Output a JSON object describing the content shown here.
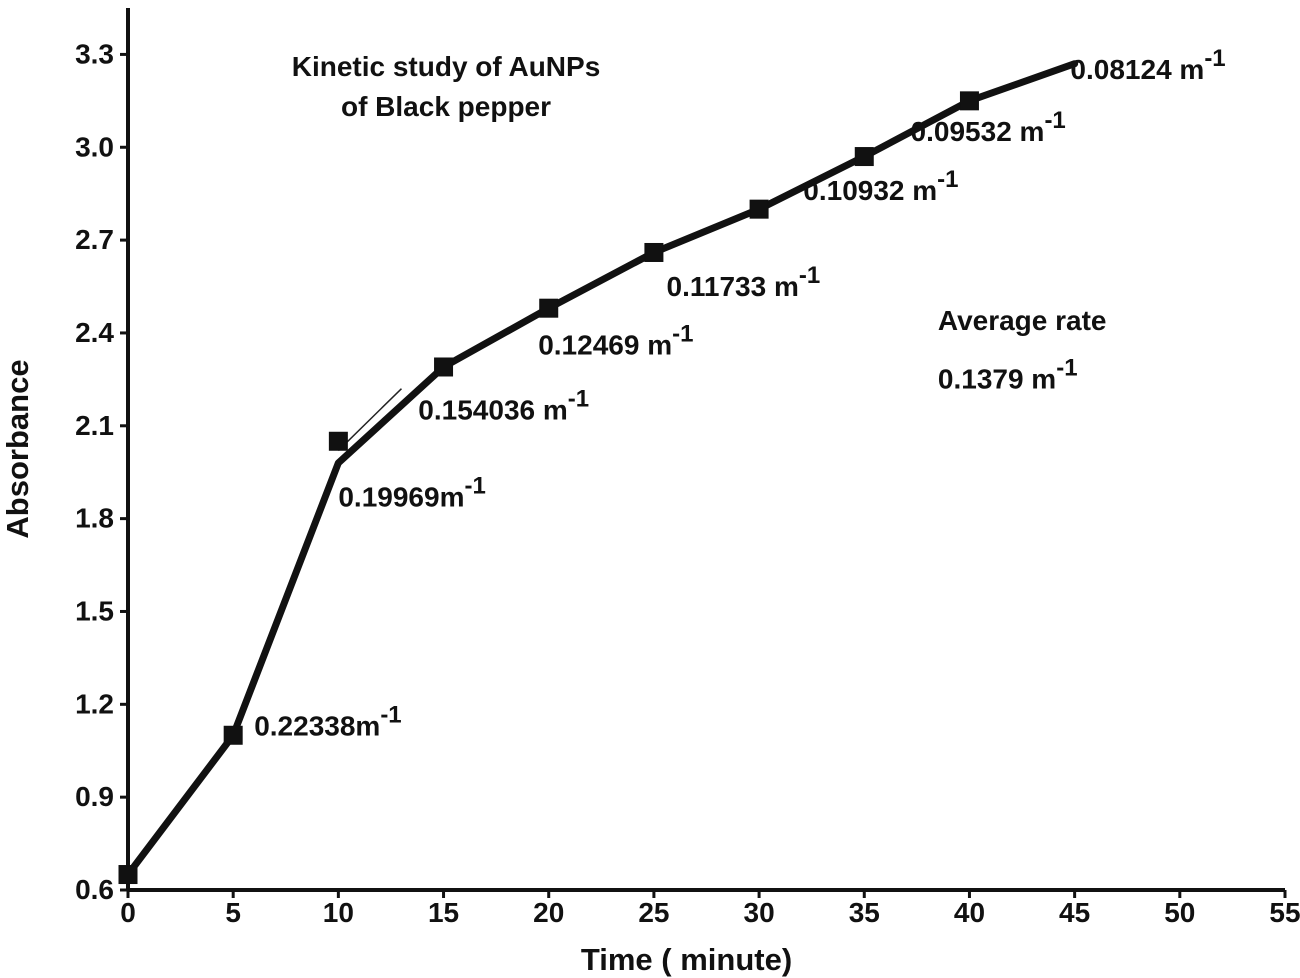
{
  "chart_data": {
    "type": "line",
    "title_lines": [
      "Kinetic study of AuNPs",
      "of Black pepper"
    ],
    "xlabel": "Time ( minute)",
    "ylabel": "Absorbance",
    "xlim": [
      0,
      55
    ],
    "ylim": [
      0.6,
      3.45
    ],
    "x_ticks": [
      0,
      5,
      10,
      15,
      20,
      25,
      30,
      35,
      40,
      45,
      50,
      55
    ],
    "y_ticks": [
      0.6,
      0.9,
      1.2,
      1.5,
      1.8,
      2.1,
      2.4,
      2.7,
      3.0,
      3.3
    ],
    "x_tick_labels": [
      "0",
      "5",
      "10",
      "15",
      "20",
      "25",
      "30",
      "35",
      "40",
      "45",
      "50",
      "55"
    ],
    "y_tick_labels": [
      "0.6",
      "0.9",
      "1.2",
      "1.5",
      "1.8",
      "2.1",
      "2.4",
      "2.7",
      "3.0",
      "3.3"
    ],
    "grid": false,
    "series": [
      {
        "x": [
          0,
          5,
          10,
          15,
          20,
          25,
          30,
          35,
          40,
          45
        ],
        "y": [
          0.65,
          1.1,
          1.98,
          2.29,
          2.48,
          2.66,
          2.8,
          2.97,
          3.15,
          3.27
        ],
        "markers_x": [
          0,
          5,
          10,
          15,
          20,
          25,
          30,
          35,
          40
        ],
        "markers_y": [
          0.65,
          1.1,
          2.05,
          2.29,
          2.48,
          2.66,
          2.8,
          2.97,
          3.15
        ],
        "color": "#111111",
        "marker": "square"
      }
    ],
    "annotations": [
      {
        "text": "0.22338m",
        "superscript": "-1",
        "x": 6.0,
        "y": 1.1
      },
      {
        "text": "0.19969m",
        "superscript": "-1",
        "x": 10.0,
        "y": 1.84
      },
      {
        "text": "0.154036 m",
        "superscript": "-1",
        "x": 13.8,
        "y": 2.12
      },
      {
        "text": "0.12469 m",
        "superscript": "-1",
        "x": 19.5,
        "y": 2.33
      },
      {
        "text": "0.11733 m",
        "superscript": "-1",
        "x": 25.6,
        "y": 2.52
      },
      {
        "text": "0.10932 m",
        "superscript": "-1",
        "x": 32.1,
        "y": 2.83
      },
      {
        "text": "0.09532 m",
        "superscript": "-1",
        "x": 37.2,
        "y": 3.02
      },
      {
        "text": "0.08124 m",
        "superscript": "-1",
        "x": 44.8,
        "y": 3.22
      },
      {
        "text": "Average rate",
        "superscript": "",
        "x": 38.5,
        "y": 2.41
      },
      {
        "text": "0.1379 m",
        "superscript": "-1",
        "x": 38.5,
        "y": 2.22
      }
    ]
  },
  "colors": {
    "foreground": "#111111",
    "background": "#ffffff"
  }
}
